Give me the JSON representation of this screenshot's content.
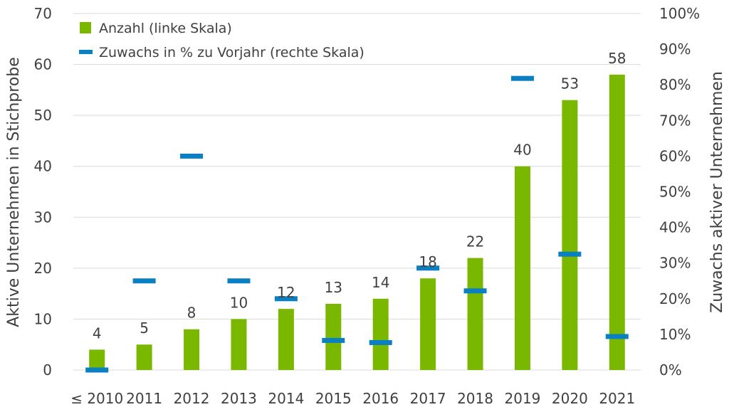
{
  "chart_data": {
    "type": "bar",
    "categories": [
      "≤ 2010",
      "2011",
      "2012",
      "2013",
      "2014",
      "2015",
      "2016",
      "2017",
      "2018",
      "2019",
      "2020",
      "2021"
    ],
    "series": [
      {
        "name": "Anzahl (linke Skala)",
        "type": "bar",
        "axis": "left",
        "color": "#7ab800",
        "values": [
          4,
          5,
          8,
          10,
          12,
          13,
          14,
          18,
          22,
          40,
          53,
          58
        ]
      },
      {
        "name": "Zuwachs in % zu Vorjahr (rechte Skala)",
        "type": "marker",
        "axis": "right",
        "color": "#0a7fc2",
        "values": [
          0,
          25,
          60,
          25,
          20,
          8.3,
          7.7,
          28.6,
          22.2,
          81.8,
          32.5,
          9.4
        ]
      }
    ],
    "ylabel_left": "Aktive Unternehmen in Stichprobe",
    "ylabel_right": "Zuwachs aktiver Unternehmen",
    "ylim_left": [
      0,
      70
    ],
    "ylim_right": [
      0,
      100
    ],
    "yticks_left": [
      "0",
      "10",
      "20",
      "30",
      "40",
      "50",
      "60",
      "70"
    ],
    "yticks_right": [
      "0%",
      "10%",
      "20%",
      "30%",
      "40%",
      "50%",
      "60%",
      "70%",
      "80%",
      "90%",
      "100%"
    ],
    "data_labels": [
      "4",
      "5",
      "8",
      "10",
      "12",
      "13",
      "14",
      "18",
      "22",
      "40",
      "53",
      "58"
    ],
    "legend": [
      {
        "label": "Anzahl (linke Skala)",
        "symbol": "square",
        "color": "#7ab800"
      },
      {
        "label": "Zuwachs in % zu Vorjahr (rechte Skala)",
        "symbol": "dash",
        "color": "#0a7fc2"
      }
    ],
    "legend_position": "top-left",
    "grid": true,
    "grid_color": "#d9d9d9"
  }
}
